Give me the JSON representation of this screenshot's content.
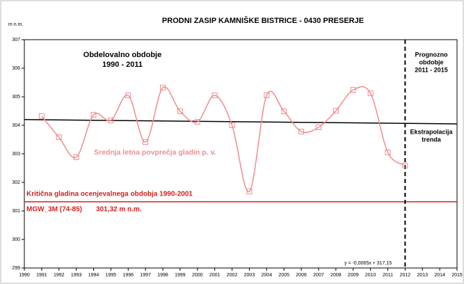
{
  "chart_data": {
    "type": "line",
    "title": "PRODNI ZASIP KAMNIŠKE BISTRICE - 0430 PRESERJE",
    "y_label": "m n.m.",
    "xlim": [
      1990,
      2015
    ],
    "xticks": [
      1990,
      1991,
      1992,
      1993,
      1994,
      1995,
      1996,
      1997,
      1998,
      1999,
      2000,
      2001,
      2002,
      2003,
      2004,
      2005,
      2006,
      2007,
      2008,
      2009,
      2010,
      2011,
      2012,
      2013,
      2014,
      2015
    ],
    "ylim": [
      299,
      307
    ],
    "yticks": [
      299,
      300,
      301,
      302,
      303,
      304,
      305,
      306,
      307
    ],
    "x": [
      1991,
      1992,
      1993,
      1994,
      1995,
      1996,
      1997,
      1998,
      1999,
      2000,
      2001,
      2002,
      2003,
      2004,
      2005,
      2006,
      2007,
      2008,
      2009,
      2010,
      2011,
      2012
    ],
    "series": [
      {
        "name": "Srednja letna povprečja gladin p. v.",
        "color": "#f08c8c",
        "values": [
          304.32,
          303.58,
          302.88,
          304.37,
          304.17,
          305.05,
          303.41,
          305.32,
          304.49,
          304.12,
          305.05,
          304.0,
          301.68,
          305.05,
          304.49,
          303.78,
          303.93,
          304.51,
          305.24,
          305.12,
          303.05,
          302.59
        ]
      }
    ],
    "trend": {
      "equation": "y = -0,0065x + 317,15",
      "x": [
        1990,
        2015
      ],
      "values": [
        304.2,
        304.05
      ],
      "color": "#000000"
    },
    "critical_level": {
      "value": 301.32,
      "label": "301,32 m n.m.",
      "name": "MGW_3M (74-85)",
      "caption": "Kritična gladina ocenjevalnega obdobja 1990-2001",
      "color": "#d42020"
    },
    "forecast_start": 2012,
    "annotations": [
      "Obdelovalno obdobje",
      "1990 - 2011",
      "Prognozno",
      "obdobje",
      "2011 - 2015",
      "Ekstrapolacija",
      "trenda"
    ]
  }
}
